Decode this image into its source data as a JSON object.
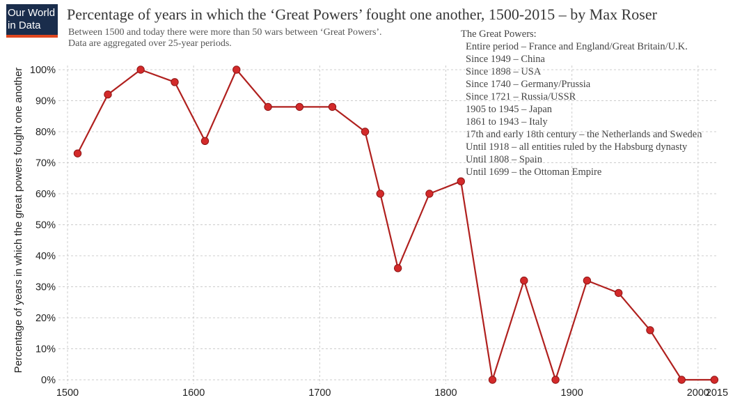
{
  "logo": {
    "line1": "Our World",
    "line2": "in Data"
  },
  "title": "Percentage of years in which the ‘Great Powers’ fought one another, 1500-2015 – by Max Roser",
  "subtitle": [
    "Between 1500 and today there were more than 50 wars between ‘Great Powers’.",
    "Data are aggregated over 25-year periods."
  ],
  "great_powers": {
    "heading": "The Great Powers:",
    "items": [
      "Entire period – France and England/Great Britain/U.K.",
      "Since 1949 – China",
      "Since 1898 – USA",
      "Since 1740 – Germany/Prussia",
      "Since 1721 – Russia/USSR",
      "1905 to 1945 – Japan",
      "1861 to 1943 – Italy",
      "17th and early 18th century – the Netherlands and Sweden",
      "Until 1918 – all entities ruled by the Habsburg dynasty",
      "Until 1808 – Spain",
      "Until 1699 – the Ottoman Empire"
    ]
  },
  "colors": {
    "line": "#b0201e",
    "marker": "#d32a2a",
    "marker_stroke": "#8e1515",
    "grid": "#cccccc",
    "logo_bg": "#1a2d4c",
    "logo_accent": "#e0461f"
  },
  "chart_data": {
    "type": "line",
    "ylabel": "Percentage of years in which the great powers fought one another",
    "xlim": [
      1500,
      2015
    ],
    "ylim": [
      0,
      100
    ],
    "x_ticks": [
      1500,
      1600,
      1700,
      1800,
      1900,
      2000,
      2015
    ],
    "y_ticks": [
      {
        "value": 0,
        "label": "0%"
      },
      {
        "value": 10,
        "label": "10%"
      },
      {
        "value": 20,
        "label": "20%"
      },
      {
        "value": 30,
        "label": "30%"
      },
      {
        "value": 40,
        "label": "40%"
      },
      {
        "value": 50,
        "label": "50%"
      },
      {
        "value": 60,
        "label": "60%"
      },
      {
        "value": 70,
        "label": "70%"
      },
      {
        "value": 80,
        "label": "80%"
      },
      {
        "value": 90,
        "label": "90%"
      },
      {
        "value": 100,
        "label": "100%"
      }
    ],
    "grid": true,
    "series": [
      {
        "x": [
          1508,
          1532,
          1558,
          1585,
          1609,
          1634,
          1659,
          1684,
          1710,
          1736,
          1748,
          1762,
          1787,
          1812,
          1837,
          1862,
          1887,
          1912,
          1937,
          1962,
          1987,
          2013
        ],
        "y": [
          73,
          92,
          100,
          96,
          77,
          100,
          88,
          88,
          88,
          80,
          60,
          36,
          60,
          64,
          0,
          32,
          0,
          32,
          28,
          16,
          0,
          0
        ]
      }
    ]
  }
}
